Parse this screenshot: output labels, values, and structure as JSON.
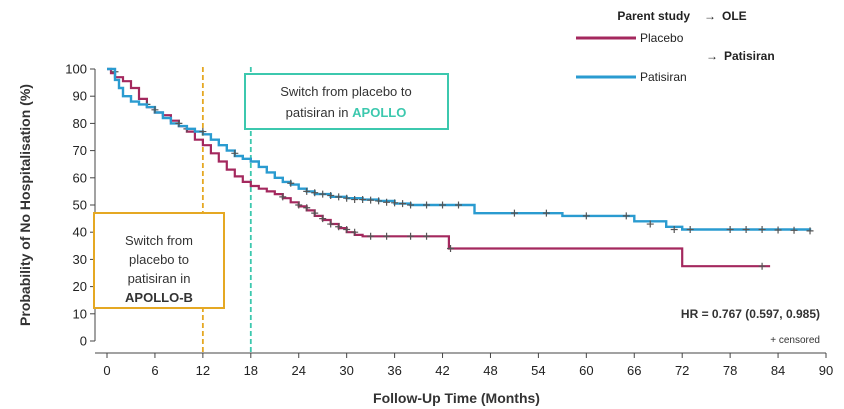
{
  "chart_data": {
    "type": "line",
    "title": "",
    "xlabel": "Follow-Up Time (Months)",
    "ylabel": "Probability of No Hospitalisation (%)",
    "xlim": [
      0,
      90
    ],
    "ylim": [
      0,
      100
    ],
    "x_ticks": [
      "0",
      "6",
      "12",
      "18",
      "24",
      "30",
      "36",
      "42",
      "48",
      "54",
      "60",
      "66",
      "72",
      "78",
      "84",
      "90"
    ],
    "y_ticks": [
      "0",
      "10",
      "20",
      "30",
      "40",
      "50",
      "60",
      "70",
      "80",
      "90",
      "100"
    ],
    "legend": {
      "parent_study_label": "Parent study",
      "ole_label": "OLE",
      "arrow_symbol": "→",
      "placebo_label": "Placebo",
      "patisiran_label": "Patisiran"
    },
    "colors": {
      "placebo": "#A4285E",
      "patisiran": "#2A9BD0",
      "apollo_b": "#E5A823",
      "apollo": "#3CC8AE",
      "censor": "#555555"
    },
    "series": [
      {
        "name": "Placebo",
        "key": "placebo",
        "points": [
          [
            0,
            100
          ],
          [
            0.5,
            98.5
          ],
          [
            1,
            97
          ],
          [
            2,
            95.5
          ],
          [
            3,
            93
          ],
          [
            4,
            89
          ],
          [
            5,
            86
          ],
          [
            6,
            84
          ],
          [
            7,
            83
          ],
          [
            8,
            81
          ],
          [
            9,
            79
          ],
          [
            10,
            77
          ],
          [
            11,
            74
          ],
          [
            12,
            72
          ],
          [
            13,
            69
          ],
          [
            14,
            66
          ],
          [
            15,
            63
          ],
          [
            16,
            60.5
          ],
          [
            17,
            58.5
          ],
          [
            18,
            57
          ],
          [
            19,
            56
          ],
          [
            20,
            55
          ],
          [
            21,
            54
          ],
          [
            22,
            52.5
          ],
          [
            23,
            51
          ],
          [
            24,
            49.5
          ],
          [
            25,
            48
          ],
          [
            26,
            46
          ],
          [
            27,
            44.5
          ],
          [
            28,
            43
          ],
          [
            29,
            41.5
          ],
          [
            30,
            40
          ],
          [
            31,
            39
          ],
          [
            32,
            38.5
          ],
          [
            42.8,
            38.5
          ],
          [
            42.8,
            34
          ],
          [
            72,
            34
          ],
          [
            72,
            27.5
          ],
          [
            83,
            27.5
          ]
        ],
        "censored": [
          [
            1,
            99
          ],
          [
            5,
            87
          ],
          [
            10,
            78
          ],
          [
            22,
            53
          ],
          [
            24,
            50
          ],
          [
            25,
            49
          ],
          [
            26,
            47
          ],
          [
            27,
            45
          ],
          [
            28,
            43
          ],
          [
            29,
            42
          ],
          [
            30,
            41
          ],
          [
            31,
            40
          ],
          [
            33,
            38.5
          ],
          [
            35,
            38.5
          ],
          [
            38,
            38.5
          ],
          [
            40,
            38.5
          ],
          [
            43,
            34
          ],
          [
            82,
            27.5
          ]
        ]
      },
      {
        "name": "Patisiran",
        "key": "patisiran",
        "points": [
          [
            0,
            100
          ],
          [
            1,
            96
          ],
          [
            1.5,
            93
          ],
          [
            2,
            90
          ],
          [
            3,
            88
          ],
          [
            4,
            87
          ],
          [
            5,
            86
          ],
          [
            6,
            84
          ],
          [
            7,
            82
          ],
          [
            8,
            80
          ],
          [
            9,
            79
          ],
          [
            10,
            78
          ],
          [
            11,
            77
          ],
          [
            12,
            76
          ],
          [
            13,
            74
          ],
          [
            14,
            72
          ],
          [
            15,
            70
          ],
          [
            16,
            68
          ],
          [
            17,
            67
          ],
          [
            18,
            66
          ],
          [
            19,
            64
          ],
          [
            20,
            62
          ],
          [
            21,
            60
          ],
          [
            22,
            58.5
          ],
          [
            23,
            57.5
          ],
          [
            24,
            56
          ],
          [
            25,
            55
          ],
          [
            26,
            54
          ],
          [
            28,
            53
          ],
          [
            30,
            52.5
          ],
          [
            32,
            52
          ],
          [
            34,
            51.5
          ],
          [
            36,
            50.5
          ],
          [
            38,
            50
          ],
          [
            46,
            50
          ],
          [
            46,
            47
          ],
          [
            57,
            47
          ],
          [
            57,
            46
          ],
          [
            66,
            46
          ],
          [
            66,
            44
          ],
          [
            70,
            42
          ],
          [
            72,
            41
          ],
          [
            80,
            41
          ],
          [
            88,
            40.5
          ]
        ],
        "censored": [
          [
            6,
            85
          ],
          [
            9,
            80
          ],
          [
            12,
            77
          ],
          [
            16,
            69
          ],
          [
            23,
            58
          ],
          [
            25,
            55
          ],
          [
            26,
            54.5
          ],
          [
            27,
            54
          ],
          [
            28,
            53.5
          ],
          [
            29,
            53
          ],
          [
            30,
            52.5
          ],
          [
            31,
            52
          ],
          [
            32,
            52
          ],
          [
            33,
            51.8
          ],
          [
            34,
            51.5
          ],
          [
            35,
            51
          ],
          [
            36,
            50.8
          ],
          [
            37,
            50.5
          ],
          [
            38,
            50
          ],
          [
            40,
            50
          ],
          [
            42,
            50
          ],
          [
            44,
            50
          ],
          [
            51,
            47
          ],
          [
            55,
            47
          ],
          [
            60,
            46
          ],
          [
            65,
            46
          ],
          [
            68,
            43
          ],
          [
            71,
            41
          ],
          [
            73,
            41
          ],
          [
            78,
            41
          ],
          [
            80,
            41
          ],
          [
            82,
            41
          ],
          [
            84,
            40.8
          ],
          [
            86,
            40.7
          ],
          [
            88,
            40.5
          ]
        ]
      }
    ],
    "vertical_lines": [
      {
        "x": 12,
        "color_key": "apollo_b"
      },
      {
        "x": 18,
        "color_key": "apollo"
      }
    ],
    "annotations": {
      "apollo_box": {
        "lines": [
          "Switch from placebo to",
          "patisiran in "
        ],
        "highlight": "APOLLO"
      },
      "apollo_b_box": {
        "lines": [
          "Switch from",
          "placebo to",
          "patisiran in"
        ],
        "highlight": "APOLLO-B"
      },
      "hr_text": "HR = 0.767 (0.597, 0.985)",
      "censored_note": "+ censored"
    }
  }
}
